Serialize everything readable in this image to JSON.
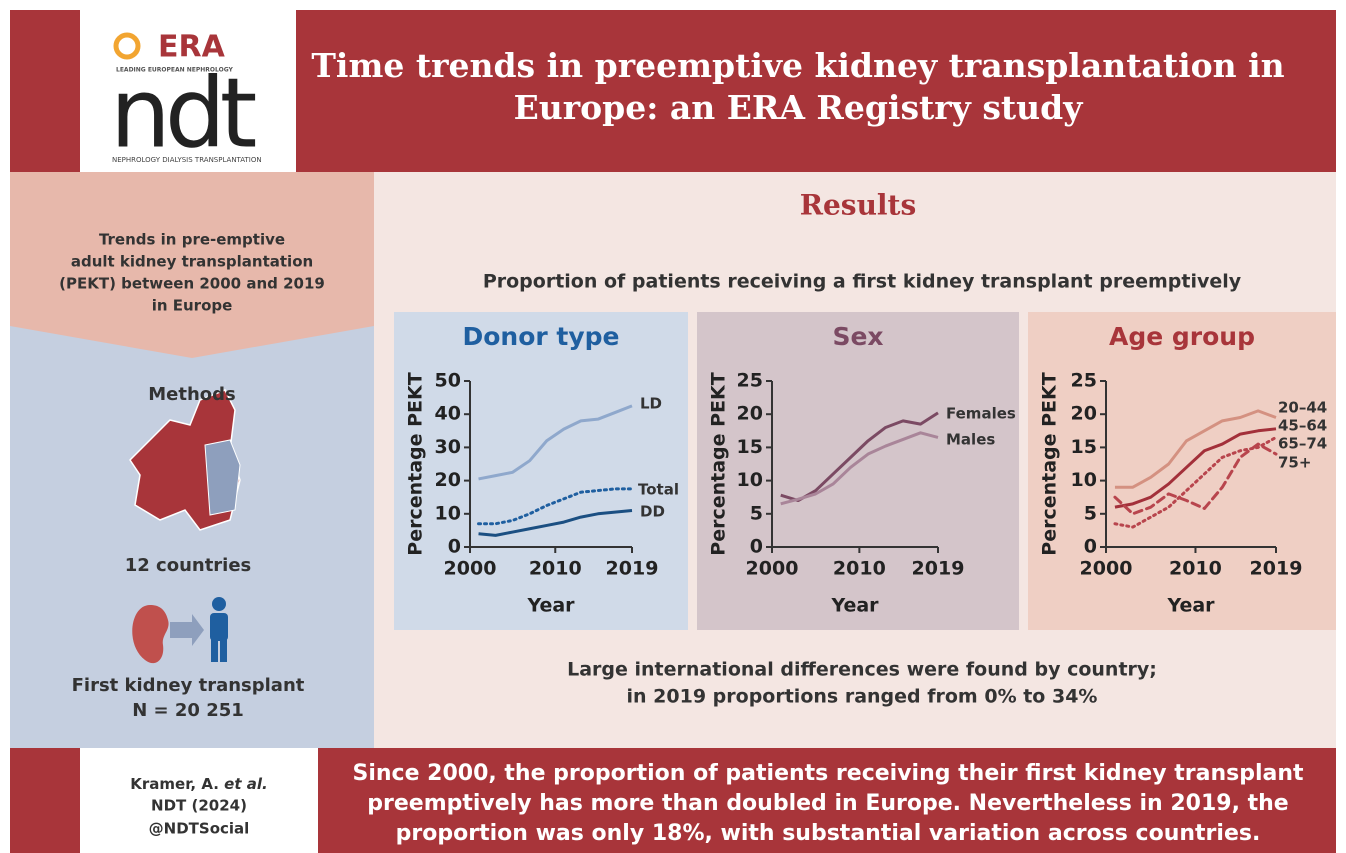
{
  "header": {
    "title": [
      "Time trends in preemptive kidney transplantation in",
      "Europe: an ERA Registry study"
    ],
    "logo": {
      "era": "ERA",
      "tagline": "LEADING EUROPEAN NEPHROLOGY",
      "ndt": "ndt",
      "journal": "NEPHROLOGY DIALYSIS TRANSPLANTATION"
    }
  },
  "sidebar": {
    "intro": [
      "Trends in pre-emptive",
      "adult kidney transplantation",
      "(PEKT) between 2000 and 2019",
      "in Europe"
    ],
    "methods": "Methods",
    "countries": "12 countries",
    "cohort": "First kidney transplant",
    "n": "N = 20 251"
  },
  "results": {
    "heading": "Results",
    "subtitle": "Proportion of patients receiving a first kidney transplant preemptively",
    "finding": [
      "Large international differences were found by country;",
      "in 2019 proportions ranged from 0% to 34%"
    ]
  },
  "footer": {
    "author": "Kramer, A.",
    "etal": "et al.",
    "journal": "NDT (2024)",
    "social": "@NDTSocial",
    "conclusion": [
      "Since 2000, the proportion of patients receiving their first kidney transplant",
      "preemptively has more than doubled in Europe. Nevertheless in 2019, the",
      "proportion was only 18%, with substantial variation across countries."
    ]
  },
  "chart_data": [
    {
      "type": "line",
      "title": "Donor type",
      "title_color": "#1f5fa0",
      "xlabel": "Year",
      "ylabel": "Percentage PEKT",
      "x": [
        2001,
        2003,
        2005,
        2007,
        2009,
        2011,
        2013,
        2015,
        2017,
        2019
      ],
      "xlim": [
        2000,
        2019
      ],
      "xticks": [
        2000,
        2010,
        2019
      ],
      "ylim": [
        0,
        50
      ],
      "yticks": [
        0,
        10,
        20,
        30,
        40,
        50
      ],
      "series": [
        {
          "name": "LD",
          "color": "#8fa8cc",
          "values": [
            20.5,
            21.5,
            22.5,
            26,
            32,
            35.5,
            38,
            38.5,
            40.5,
            42.5
          ]
        },
        {
          "name": "Total",
          "color": "#1f5fa0",
          "dash": "dotted",
          "values": [
            7,
            7,
            8,
            10,
            12.5,
            14.5,
            16.5,
            17,
            17.5,
            17.5
          ]
        },
        {
          "name": "DD",
          "color": "#1b4f82",
          "values": [
            4,
            3.5,
            4.5,
            5.5,
            6.5,
            7.5,
            9,
            10,
            10.5,
            11
          ]
        }
      ]
    },
    {
      "type": "line",
      "title": "Sex",
      "title_color": "#7b4a63",
      "xlabel": "Year",
      "ylabel": "Percentage PEKT",
      "x": [
        2001,
        2003,
        2005,
        2007,
        2009,
        2011,
        2013,
        2015,
        2017,
        2019
      ],
      "xlim": [
        2000,
        2019
      ],
      "xticks": [
        2000,
        2010,
        2019
      ],
      "ylim": [
        0,
        25
      ],
      "yticks": [
        0,
        5,
        10,
        15,
        20,
        25
      ],
      "series": [
        {
          "name": "Females",
          "color": "#7b4a63",
          "values": [
            7.8,
            7,
            8.5,
            11,
            13.5,
            16,
            18,
            19,
            18.5,
            20.2
          ]
        },
        {
          "name": "Males",
          "color": "#a98599",
          "values": [
            6.5,
            7.2,
            8,
            9.5,
            12,
            14,
            15.2,
            16.2,
            17.2,
            16.5
          ]
        }
      ]
    },
    {
      "type": "line",
      "title": "Age group",
      "title_color": "#a8353a",
      "xlabel": "Year",
      "ylabel": "Percentage PEKT",
      "x": [
        2001,
        2003,
        2005,
        2007,
        2009,
        2011,
        2013,
        2015,
        2017,
        2019
      ],
      "xlim": [
        2000,
        2019
      ],
      "xticks": [
        2000,
        2010,
        2019
      ],
      "ylim": [
        0,
        25
      ],
      "yticks": [
        0,
        5,
        10,
        15,
        20,
        25
      ],
      "series": [
        {
          "name": "20–44",
          "color": "#d49181",
          "values": [
            9,
            9,
            10.5,
            12.5,
            16,
            17.5,
            19,
            19.5,
            20.5,
            19.5
          ]
        },
        {
          "name": "45–64",
          "color": "#a3303a",
          "values": [
            6,
            6.5,
            7.5,
            9.5,
            12,
            14.5,
            15.5,
            17,
            17.5,
            17.8
          ]
        },
        {
          "name": "65–74",
          "color": "#b8454d",
          "dash": "dotted",
          "values": [
            3.5,
            3,
            4.5,
            6,
            8.5,
            11,
            13.5,
            14.5,
            15,
            16.5
          ]
        },
        {
          "name": "75+",
          "color": "#b8454d",
          "dash": "dashed",
          "values": [
            7.5,
            5,
            6,
            8,
            7,
            5.8,
            9,
            13.5,
            15.5,
            14
          ]
        }
      ]
    }
  ]
}
